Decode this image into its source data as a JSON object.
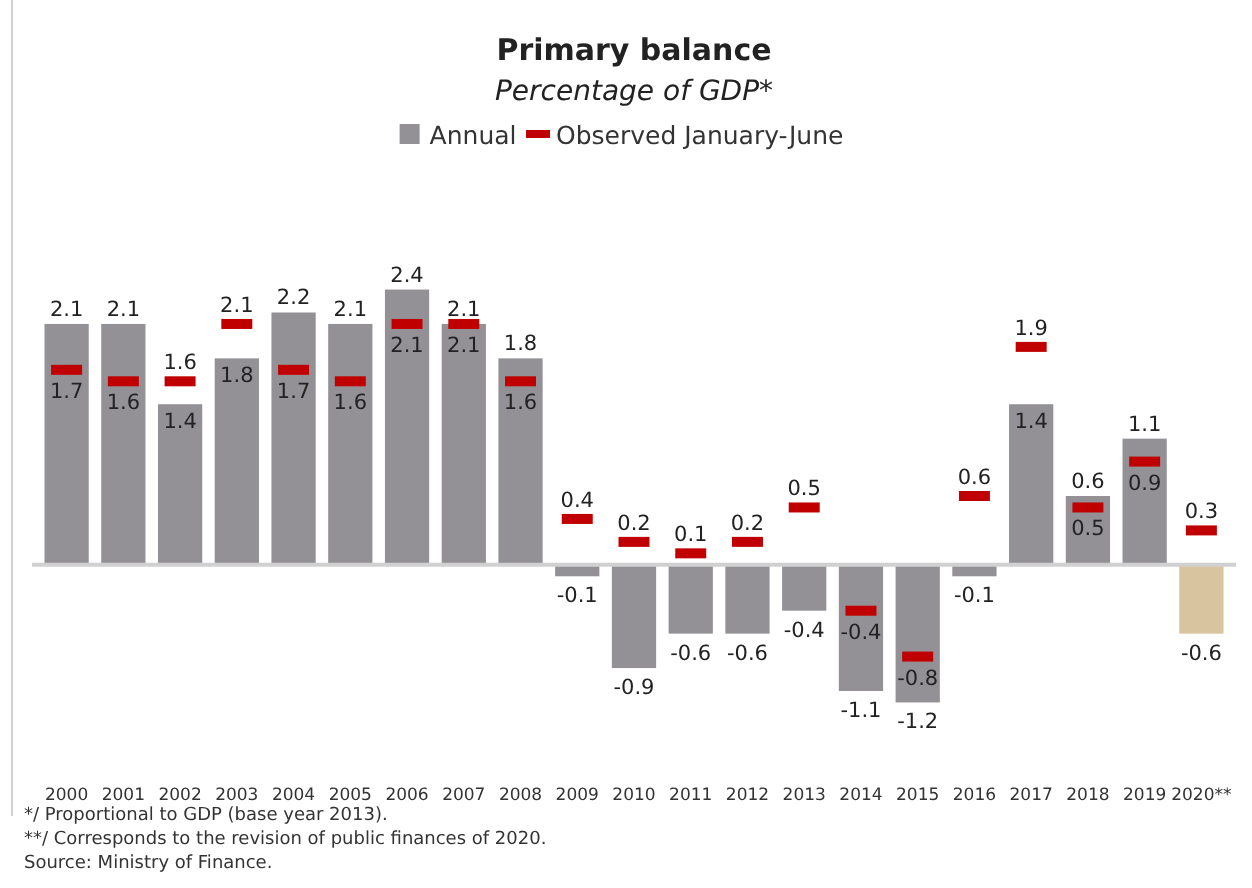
{
  "chart_data": {
    "type": "bar",
    "title": "Primary balance",
    "subtitle": "Percentage of GDP*",
    "categories": [
      "2000",
      "2001",
      "2002",
      "2003",
      "2004",
      "2005",
      "2006",
      "2007",
      "2008",
      "2009",
      "2010",
      "2011",
      "2012",
      "2013",
      "2014",
      "2015",
      "2016",
      "2017",
      "2018",
      "2019",
      "2020**"
    ],
    "series": [
      {
        "name": "Annual",
        "color": "#939196",
        "colors": [
          "#939196",
          "#939196",
          "#939196",
          "#939196",
          "#939196",
          "#939196",
          "#939196",
          "#939196",
          "#939196",
          "#939196",
          "#939196",
          "#939196",
          "#939196",
          "#939196",
          "#939196",
          "#939196",
          "#939196",
          "#939196",
          "#939196",
          "#939196",
          "#d8c49e"
        ],
        "values": [
          2.1,
          2.1,
          1.4,
          1.8,
          2.2,
          2.1,
          2.4,
          2.1,
          1.8,
          -0.1,
          -0.9,
          -0.6,
          -0.6,
          -0.4,
          -1.1,
          -1.2,
          -0.1,
          1.4,
          0.6,
          1.1,
          -0.6
        ]
      },
      {
        "name": "Observed January-June",
        "type": "scatter",
        "color": "#c00000",
        "values": [
          1.7,
          1.6,
          1.6,
          2.1,
          1.7,
          1.6,
          2.1,
          2.1,
          1.6,
          0.4,
          0.2,
          0.1,
          0.2,
          0.5,
          -0.4,
          -0.8,
          0.6,
          1.9,
          0.5,
          0.9,
          0.3
        ]
      }
    ],
    "data_labels": true,
    "legend": "top",
    "annotations": [
      "*/  Proportional to GDP (base year 2013).",
      "**/ Corresponds to the revision of public finances of 2020.",
      "Source: Ministry of Finance."
    ]
  }
}
